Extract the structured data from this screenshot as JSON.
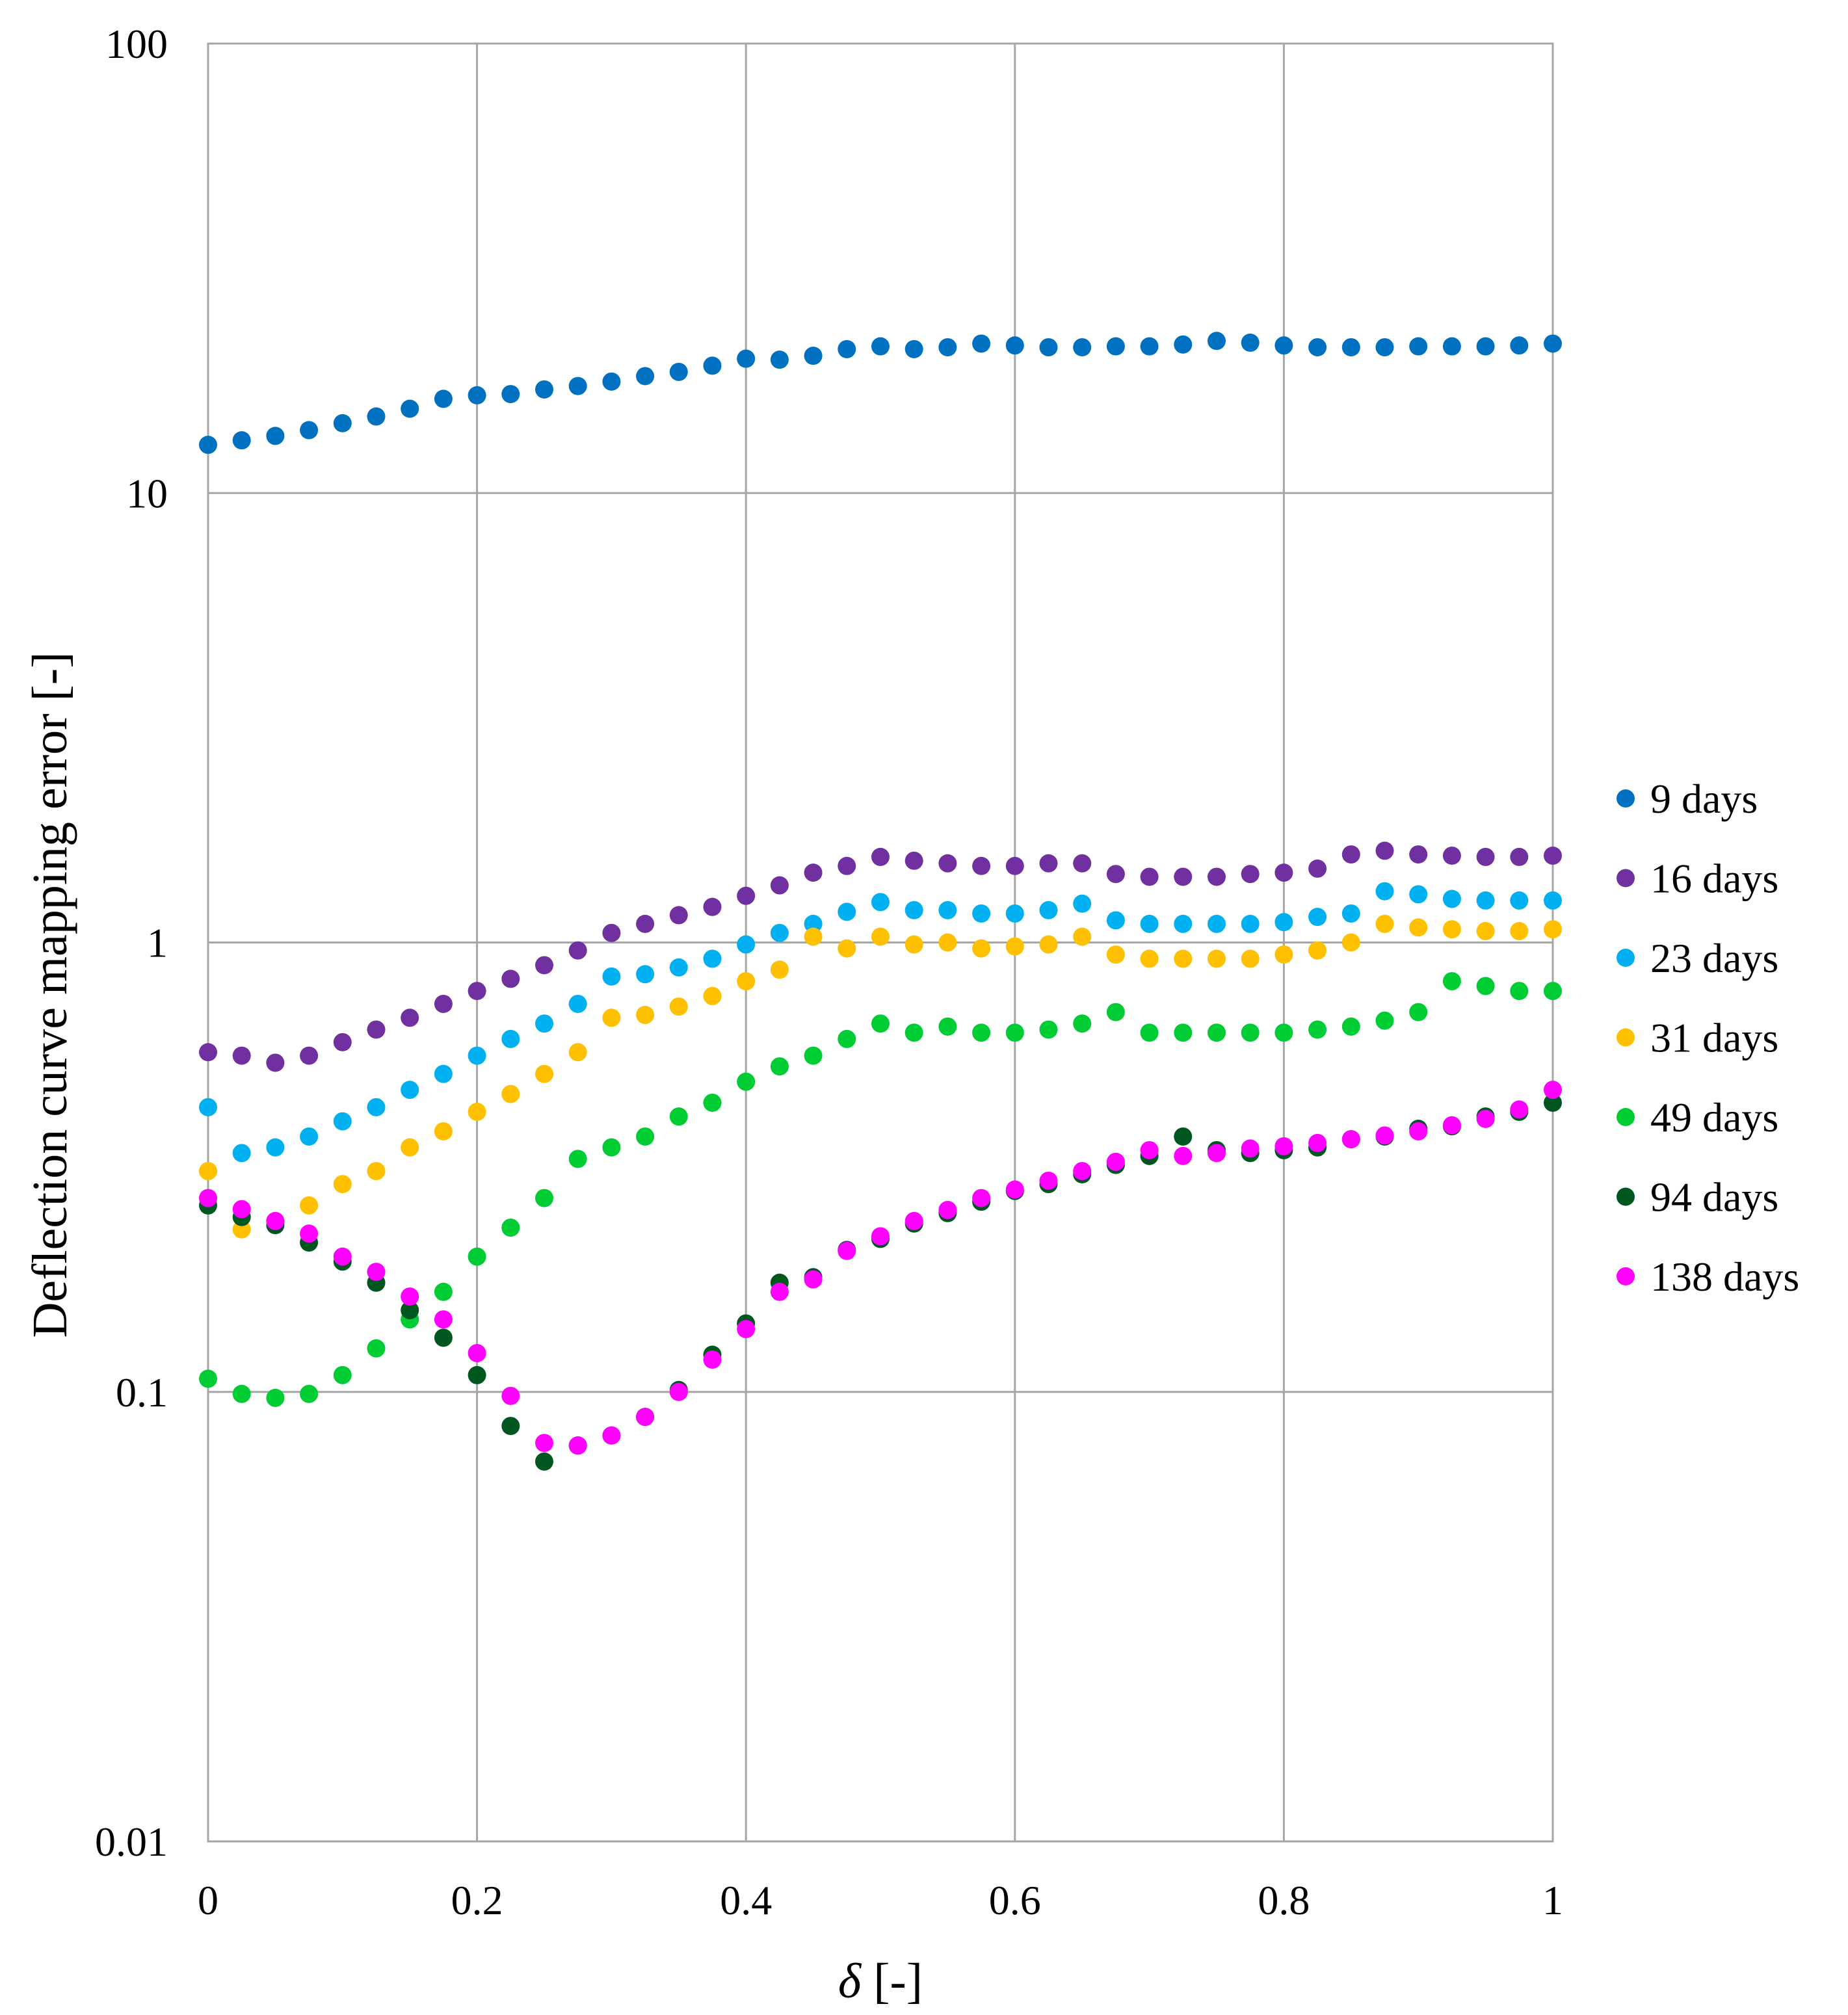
{
  "chart_data": {
    "type": "scatter",
    "title": "",
    "xlabel": "δ [-]",
    "xlabel_symbol": "δ",
    "xlabel_unit": " [-]",
    "ylabel": "Deflection curve mapping error [-]",
    "xlim": [
      0,
      1
    ],
    "ylim": [
      0.01,
      100
    ],
    "yscale": "log",
    "grid": true,
    "legend_position": "right",
    "x_ticks": [
      0,
      0.2,
      0.4,
      0.6,
      0.8,
      1
    ],
    "x_tick_labels": [
      "0",
      "0.2",
      "0.4",
      "0.6",
      "0.8",
      "1"
    ],
    "y_ticks": [
      0.01,
      0.1,
      1,
      10,
      100
    ],
    "y_tick_labels": [
      "0.01",
      "0.1",
      "1",
      "10",
      "100"
    ],
    "x": [
      0,
      0.025,
      0.05,
      0.075,
      0.1,
      0.125,
      0.15,
      0.175,
      0.2,
      0.225,
      0.25,
      0.275,
      0.3,
      0.325,
      0.35,
      0.375,
      0.4,
      0.425,
      0.45,
      0.475,
      0.5,
      0.525,
      0.55,
      0.575,
      0.6,
      0.625,
      0.65,
      0.675,
      0.7,
      0.725,
      0.75,
      0.775,
      0.8,
      0.825,
      0.85,
      0.875,
      0.9,
      0.925,
      0.95,
      0.975,
      1
    ],
    "series": [
      {
        "name": "9 days",
        "color": "#0070c0",
        "values": [
          12.8,
          13.1,
          13.4,
          13.8,
          14.3,
          14.8,
          15.4,
          16.2,
          16.5,
          16.6,
          17.0,
          17.3,
          17.7,
          18.2,
          18.6,
          19.2,
          19.9,
          19.8,
          20.2,
          20.9,
          21.2,
          20.9,
          21.1,
          21.5,
          21.3,
          21.1,
          21.1,
          21.2,
          21.2,
          21.4,
          21.8,
          21.6,
          21.3,
          21.1,
          21.1,
          21.1,
          21.2,
          21.2,
          21.2,
          21.3,
          21.5
        ]
      },
      {
        "name": "16 days",
        "color": "#7030a0",
        "values": [
          0.57,
          0.56,
          0.54,
          0.56,
          0.6,
          0.64,
          0.68,
          0.73,
          0.78,
          0.83,
          0.89,
          0.96,
          1.05,
          1.1,
          1.15,
          1.2,
          1.27,
          1.34,
          1.43,
          1.48,
          1.55,
          1.52,
          1.5,
          1.48,
          1.48,
          1.5,
          1.5,
          1.42,
          1.4,
          1.4,
          1.4,
          1.42,
          1.43,
          1.46,
          1.57,
          1.6,
          1.57,
          1.56,
          1.55,
          1.55,
          1.56
        ]
      },
      {
        "name": "23 days",
        "color": "#00b0f0",
        "values": [
          0.43,
          0.34,
          0.35,
          0.37,
          0.4,
          0.43,
          0.47,
          0.51,
          0.56,
          0.61,
          0.66,
          0.73,
          0.84,
          0.85,
          0.88,
          0.92,
          0.99,
          1.05,
          1.1,
          1.17,
          1.23,
          1.18,
          1.18,
          1.16,
          1.16,
          1.18,
          1.22,
          1.12,
          1.1,
          1.1,
          1.1,
          1.1,
          1.11,
          1.14,
          1.16,
          1.3,
          1.28,
          1.25,
          1.24,
          1.24,
          1.24
        ]
      },
      {
        "name": "31 days",
        "color": "#ffc000",
        "values": [
          0.31,
          0.23,
          0.24,
          0.26,
          0.29,
          0.31,
          0.35,
          0.38,
          0.42,
          0.46,
          0.51,
          0.57,
          0.68,
          0.69,
          0.72,
          0.76,
          0.82,
          0.87,
          1.03,
          0.97,
          1.03,
          0.99,
          1.0,
          0.97,
          0.98,
          0.99,
          1.03,
          0.94,
          0.92,
          0.92,
          0.92,
          0.92,
          0.94,
          0.96,
          1.0,
          1.1,
          1.08,
          1.07,
          1.06,
          1.06,
          1.07
        ]
      },
      {
        "name": "49 days",
        "color": "#00cc33",
        "values": [
          0.107,
          0.099,
          0.097,
          0.099,
          0.109,
          0.125,
          0.145,
          0.167,
          0.2,
          0.232,
          0.27,
          0.33,
          0.35,
          0.37,
          0.41,
          0.44,
          0.49,
          0.53,
          0.56,
          0.61,
          0.66,
          0.63,
          0.65,
          0.63,
          0.63,
          0.64,
          0.66,
          0.7,
          0.63,
          0.63,
          0.63,
          0.63,
          0.63,
          0.64,
          0.65,
          0.67,
          0.7,
          0.82,
          0.8,
          0.78,
          0.78
        ]
      },
      {
        "name": "94 days",
        "color": "#00561f",
        "values": [
          0.26,
          0.245,
          0.235,
          0.215,
          0.195,
          0.175,
          0.152,
          0.132,
          0.109,
          0.084,
          0.07,
          0.076,
          0.08,
          0.088,
          0.101,
          0.121,
          0.142,
          0.175,
          0.18,
          0.207,
          0.219,
          0.237,
          0.25,
          0.265,
          0.28,
          0.29,
          0.305,
          0.32,
          0.335,
          0.37,
          0.345,
          0.34,
          0.345,
          0.35,
          0.365,
          0.37,
          0.385,
          0.39,
          0.41,
          0.42,
          0.44
        ]
      },
      {
        "name": "138 days",
        "color": "#ff00ff",
        "values": [
          0.27,
          0.255,
          0.24,
          0.225,
          0.2,
          0.185,
          0.163,
          0.145,
          0.122,
          0.098,
          0.077,
          0.076,
          0.08,
          0.088,
          0.1,
          0.118,
          0.138,
          0.167,
          0.178,
          0.206,
          0.222,
          0.24,
          0.254,
          0.27,
          0.282,
          0.295,
          0.31,
          0.325,
          0.345,
          0.335,
          0.34,
          0.348,
          0.352,
          0.358,
          0.365,
          0.372,
          0.38,
          0.392,
          0.405,
          0.425,
          0.47
        ]
      }
    ]
  }
}
